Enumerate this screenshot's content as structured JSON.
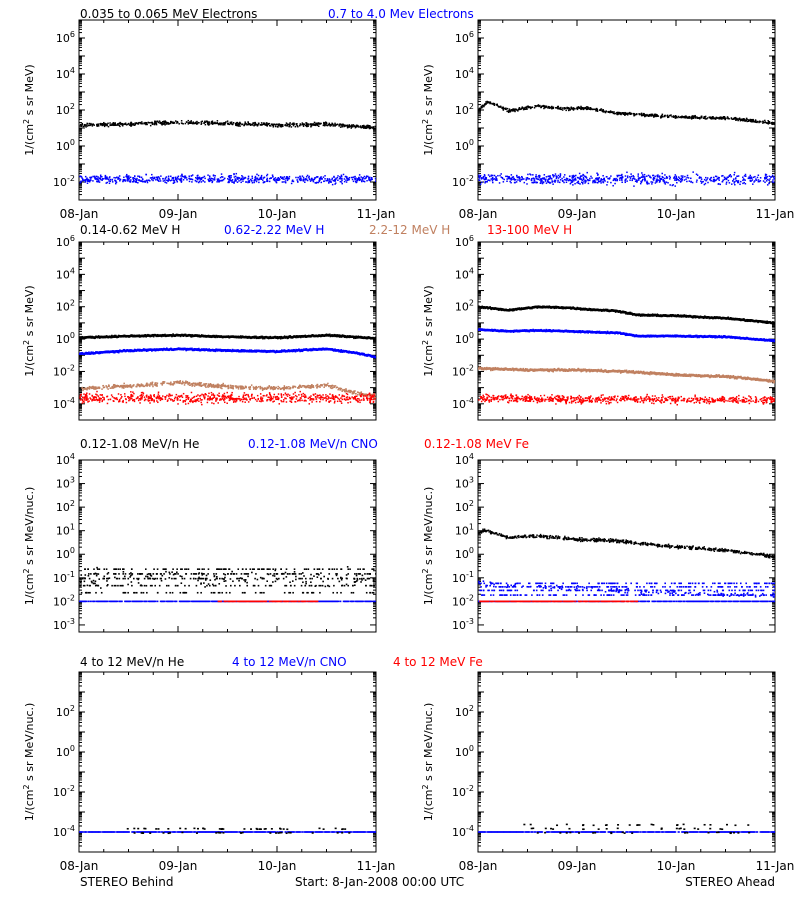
{
  "footer": {
    "left": "STEREO Behind",
    "center": "Start:  8-Jan-2008 00:00 UTC",
    "right": "STEREO Ahead"
  },
  "colors": {
    "black": "#000000",
    "blue": "#0000ff",
    "tan": "#c08060",
    "red": "#ff0000",
    "axis": "#000000"
  },
  "chart_data": [
    {
      "type": "scatter",
      "row": 1,
      "title_items": [
        {
          "text": "0.035 to 0.065 MeV Electrons",
          "color": "black"
        },
        {
          "text": "0.7 to 4.0 Mev Electrons",
          "color": "blue"
        }
      ],
      "ylabel": "1/(cm² s sr MeV)",
      "yscale": "log",
      "ylim_exp": [
        -3,
        7
      ],
      "ytick_labels": [
        {
          "exp": -2,
          "text": "10",
          "sup": "-2"
        },
        {
          "exp": 0,
          "text": "10",
          "sup": "0"
        },
        {
          "exp": 2,
          "text": "10",
          "sup": "2"
        },
        {
          "exp": 4,
          "text": "10",
          "sup": "4"
        },
        {
          "exp": 6,
          "text": "10",
          "sup": "6"
        }
      ],
      "xlim_days": [
        0,
        3
      ],
      "xtick_labels": [
        {
          "day": 0,
          "text": "08-Jan"
        },
        {
          "day": 1,
          "text": "09-Jan"
        },
        {
          "day": 2,
          "text": "10-Jan"
        },
        {
          "day": 3,
          "text": "11-Jan"
        }
      ],
      "panels": [
        {
          "spacecraft": "STEREO Behind",
          "series": [
            {
              "color": "black",
              "x": [
                0,
                0.5,
                1.0,
                1.5,
                2.0,
                2.5,
                3.0
              ],
              "y_exp": [
                1.2,
                1.25,
                1.35,
                1.3,
                1.2,
                1.25,
                1.05
              ],
              "scatter": 0.15,
              "style": "points"
            },
            {
              "color": "blue",
              "x": [
                0,
                0.5,
                1.0,
                1.5,
                2.0,
                2.5,
                3.0
              ],
              "y_exp": [
                -1.8,
                -1.8,
                -1.8,
                -1.8,
                -1.8,
                -1.8,
                -1.8
              ],
              "scatter": 0.35,
              "style": "points"
            }
          ]
        },
        {
          "spacecraft": "STEREO Ahead",
          "series": [
            {
              "color": "black",
              "x": [
                0,
                0.1,
                0.3,
                0.6,
                0.9,
                1.1,
                1.4,
                1.6,
                2.0,
                2.5,
                3.0
              ],
              "y_exp": [
                2.1,
                2.5,
                2.0,
                2.25,
                2.1,
                2.15,
                1.85,
                1.8,
                1.65,
                1.6,
                1.3
              ],
              "scatter": 0.12,
              "style": "points"
            },
            {
              "color": "blue",
              "x": [
                0,
                0.5,
                1.0,
                1.5,
                2.0,
                2.5,
                3.0
              ],
              "y_exp": [
                -1.8,
                -1.8,
                -1.8,
                -1.8,
                -1.8,
                -1.8,
                -1.8
              ],
              "scatter": 0.45,
              "style": "points"
            }
          ]
        }
      ]
    },
    {
      "type": "scatter",
      "row": 2,
      "title_items": [
        {
          "text": "0.14-0.62 MeV H",
          "color": "black"
        },
        {
          "text": "0.62-2.22 MeV H",
          "color": "blue"
        },
        {
          "text": "2.2-12 MeV H",
          "color": "tan"
        },
        {
          "text": "13-100 MeV H",
          "color": "red"
        }
      ],
      "ylabel": "1/(cm² s sr MeV)",
      "yscale": "log",
      "ylim_exp": [
        -5,
        6
      ],
      "ytick_labels": [
        {
          "exp": -4,
          "text": "10",
          "sup": "-4"
        },
        {
          "exp": -2,
          "text": "10",
          "sup": "-2"
        },
        {
          "exp": 0,
          "text": "10",
          "sup": "0"
        },
        {
          "exp": 2,
          "text": "10",
          "sup": "2"
        },
        {
          "exp": 4,
          "text": "10",
          "sup": "4"
        },
        {
          "exp": 6,
          "text": "10",
          "sup": "6"
        }
      ],
      "xlim_days": [
        0,
        3
      ],
      "xtick_labels": [],
      "panels": [
        {
          "spacecraft": "STEREO Behind",
          "series": [
            {
              "color": "black",
              "x": [
                0,
                0.5,
                1.0,
                1.5,
                2.0,
                2.5,
                3.0
              ],
              "y_exp": [
                0.1,
                0.2,
                0.25,
                0.15,
                0.1,
                0.25,
                0.05
              ],
              "scatter": 0.06,
              "style": "line"
            },
            {
              "color": "blue",
              "x": [
                0,
                0.5,
                1.0,
                1.5,
                2.0,
                2.5,
                2.8,
                3.0
              ],
              "y_exp": [
                -0.9,
                -0.7,
                -0.6,
                -0.7,
                -0.75,
                -0.6,
                -0.85,
                -1.1
              ],
              "scatter": 0.06,
              "style": "line"
            },
            {
              "color": "tan",
              "x": [
                0,
                0.5,
                1.0,
                1.5,
                2.0,
                2.5,
                2.8,
                3.0
              ],
              "y_exp": [
                -3.0,
                -2.85,
                -2.65,
                -2.9,
                -3.0,
                -2.8,
                -3.3,
                -3.5
              ],
              "scatter": 0.18,
              "style": "points"
            },
            {
              "color": "red",
              "x": [
                0,
                0.5,
                1.0,
                1.5,
                2.0,
                2.5,
                3.0
              ],
              "y_exp": [
                -3.6,
                -3.6,
                -3.6,
                -3.6,
                -3.6,
                -3.6,
                -3.6
              ],
              "scatter": 0.45,
              "style": "points"
            }
          ]
        },
        {
          "spacecraft": "STEREO Ahead",
          "series": [
            {
              "color": "black",
              "x": [
                0,
                0.3,
                0.6,
                0.9,
                1.1,
                1.4,
                1.6,
                2.0,
                2.5,
                3.0
              ],
              "y_exp": [
                2.0,
                1.8,
                2.0,
                1.95,
                1.85,
                1.75,
                1.5,
                1.45,
                1.3,
                1.0
              ],
              "scatter": 0.06,
              "style": "line"
            },
            {
              "color": "blue",
              "x": [
                0,
                0.3,
                0.6,
                0.9,
                1.1,
                1.4,
                1.6,
                2.0,
                2.5,
                3.0
              ],
              "y_exp": [
                0.6,
                0.5,
                0.55,
                0.5,
                0.45,
                0.4,
                0.2,
                0.2,
                0.15,
                -0.1
              ],
              "scatter": 0.05,
              "style": "line"
            },
            {
              "color": "tan",
              "x": [
                0,
                0.5,
                1.0,
                1.5,
                2.0,
                2.5,
                3.0
              ],
              "y_exp": [
                -1.8,
                -1.9,
                -1.9,
                -2.0,
                -2.2,
                -2.3,
                -2.6
              ],
              "scatter": 0.08,
              "style": "line"
            },
            {
              "color": "red",
              "x": [
                0,
                0.5,
                1.0,
                1.5,
                2.0,
                2.5,
                3.0
              ],
              "y_exp": [
                -3.6,
                -3.65,
                -3.7,
                -3.65,
                -3.7,
                -3.7,
                -3.7
              ],
              "scatter": 0.35,
              "style": "points"
            }
          ]
        }
      ]
    },
    {
      "type": "scatter",
      "row": 3,
      "title_items": [
        {
          "text": "0.12-1.08 MeV/n He",
          "color": "black"
        },
        {
          "text": "0.12-1.08 MeV/n CNO",
          "color": "blue"
        },
        {
          "text": "0.12-1.08 MeV Fe",
          "color": "red"
        }
      ],
      "ylabel": "1/(cm² s sr MeV/nuc.)",
      "yscale": "log",
      "ylim_exp": [
        -3.3,
        4
      ],
      "ytick_labels": [
        {
          "exp": -3,
          "text": "10",
          "sup": "-3"
        },
        {
          "exp": -2,
          "text": "10",
          "sup": "-2"
        },
        {
          "exp": -1,
          "text": "10",
          "sup": "-1"
        },
        {
          "exp": 0,
          "text": "10",
          "sup": "0"
        },
        {
          "exp": 1,
          "text": "10",
          "sup": "1"
        },
        {
          "exp": 2,
          "text": "10",
          "sup": "2"
        },
        {
          "exp": 3,
          "text": "10",
          "sup": "3"
        },
        {
          "exp": 4,
          "text": "10",
          "sup": "4"
        }
      ],
      "xlim_days": [
        0,
        3
      ],
      "xtick_labels": [],
      "panels": [
        {
          "spacecraft": "STEREO Behind",
          "series": [
            {
              "color": "black",
              "x": [
                0,
                3.0
              ],
              "y_exp": [
                -1.0,
                -1.0
              ],
              "scatter": 0.55,
              "style": "quantized",
              "levels": [
                -0.6,
                -0.8,
                -1.0,
                -1.3,
                -1.6
              ]
            },
            {
              "color": "blue",
              "x": [
                0,
                3.0
              ],
              "y_exp": [
                -2.0,
                -2.0
              ],
              "scatter": 0,
              "style": "dashes"
            },
            {
              "color": "red",
              "x": [
                1.4,
                2.4
              ],
              "y_exp": [
                -2.0,
                -2.0
              ],
              "scatter": 0,
              "style": "dashes"
            }
          ]
        },
        {
          "spacecraft": "STEREO Ahead",
          "series": [
            {
              "color": "black",
              "x": [
                0,
                0.05,
                0.3,
                0.6,
                0.9,
                1.1,
                1.4,
                1.6,
                2.0,
                2.5,
                2.8,
                3.0
              ],
              "y_exp": [
                0.95,
                1.05,
                0.75,
                0.8,
                0.7,
                0.65,
                0.6,
                0.5,
                0.35,
                0.2,
                0.05,
                -0.1
              ],
              "scatter": 0.1,
              "style": "points"
            },
            {
              "color": "blue",
              "x": [
                0,
                0.5,
                1.0,
                1.5,
                2.0,
                3.0
              ],
              "y_exp": [
                -1.2,
                -1.35,
                -1.4,
                -1.55,
                -1.6,
                -1.7
              ],
              "scatter": 0.15,
              "style": "quantized",
              "levels": [
                -1.2,
                -1.35,
                -1.5,
                -1.7
              ]
            },
            {
              "color": "blue",
              "x": [
                0,
                3.0
              ],
              "y_exp": [
                -2.0,
                -2.0
              ],
              "scatter": 0,
              "style": "dashes"
            },
            {
              "color": "red",
              "x": [
                0,
                1.6
              ],
              "y_exp": [
                -2.0,
                -2.0
              ],
              "scatter": 0,
              "style": "dashes"
            }
          ]
        }
      ]
    },
    {
      "type": "scatter",
      "row": 4,
      "title_items": [
        {
          "text": "4 to 12 MeV/n He",
          "color": "black"
        },
        {
          "text": "4 to 12 MeV/n CNO",
          "color": "blue"
        },
        {
          "text": "4 to 12 MeV Fe",
          "color": "red"
        }
      ],
      "ylabel": "1/(cm² s sr MeV/nuc.)",
      "yscale": "log",
      "ylim_exp": [
        -5,
        4
      ],
      "ytick_labels": [
        {
          "exp": -4,
          "text": "10",
          "sup": "-4"
        },
        {
          "exp": -2,
          "text": "10",
          "sup": "-2"
        },
        {
          "exp": 0,
          "text": "10",
          "sup": "0"
        },
        {
          "exp": 2,
          "text": "10",
          "sup": "2"
        }
      ],
      "xlim_days": [
        0,
        3
      ],
      "xtick_labels": [
        {
          "day": 0,
          "text": "08-Jan"
        },
        {
          "day": 1,
          "text": "09-Jan"
        },
        {
          "day": 2,
          "text": "10-Jan"
        },
        {
          "day": 3,
          "text": "11-Jan"
        }
      ],
      "panels": [
        {
          "spacecraft": "STEREO Behind",
          "series": [
            {
              "color": "blue",
              "x": [
                0,
                3.0
              ],
              "y_exp": [
                -4.0,
                -4.0
              ],
              "scatter": 0,
              "style": "dashes"
            },
            {
              "color": "black",
              "x": [
                0,
                3.0
              ],
              "y_exp": [
                -4.0,
                -4.0
              ],
              "scatter": 0,
              "style": "sparse",
              "levels": [
                -3.8,
                -4.0
              ]
            }
          ]
        },
        {
          "spacecraft": "STEREO Ahead",
          "series": [
            {
              "color": "blue",
              "x": [
                0,
                3.0
              ],
              "y_exp": [
                -4.0,
                -4.0
              ],
              "scatter": 0,
              "style": "dashes"
            },
            {
              "color": "black",
              "x": [
                0,
                3.0
              ],
              "y_exp": [
                -4.0,
                -4.0
              ],
              "scatter": 0,
              "style": "sparse",
              "levels": [
                -3.8,
                -4.0,
                -3.6
              ]
            }
          ]
        }
      ]
    }
  ]
}
